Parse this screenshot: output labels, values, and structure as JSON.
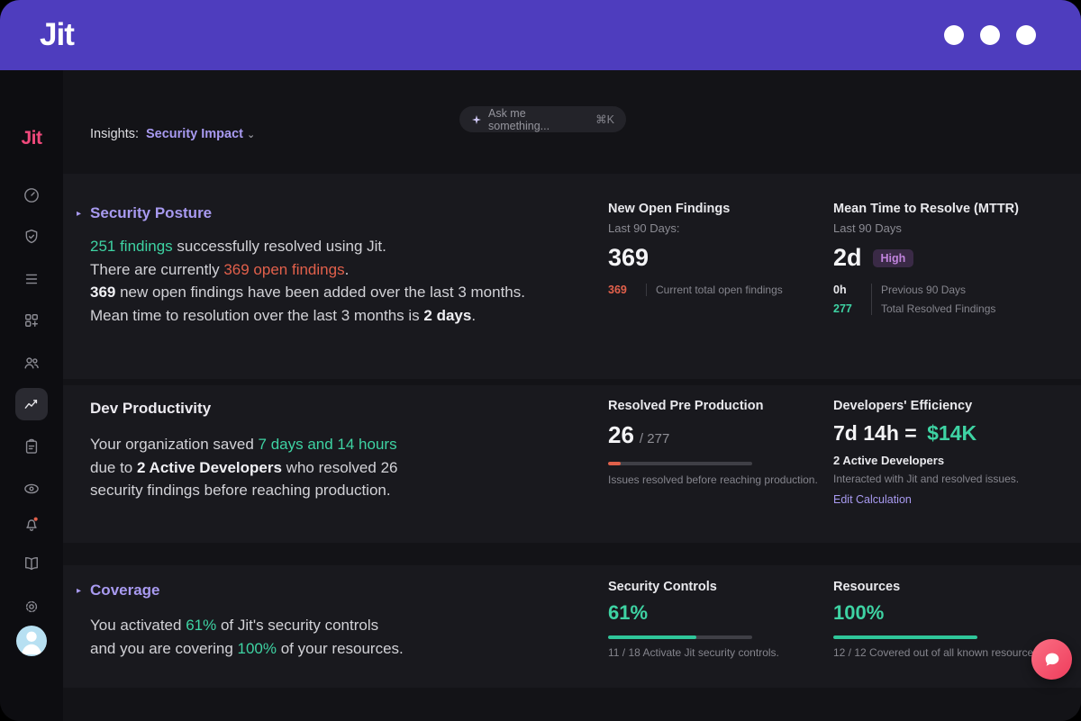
{
  "colors": {
    "header_purple": "#4e3dbe",
    "accent_purple": "#a89af0",
    "teal": "#3ed3a3",
    "coral": "#e2604b",
    "sidebar_logo_pink": "#f0497c"
  },
  "header": {
    "logo": "Jit"
  },
  "sidebar": {
    "logo": "Jit"
  },
  "topbar": {
    "insights_label": "Insights:",
    "insights_value": "Security Impact",
    "search_placeholder": "Ask me something...",
    "search_shortcut": "⌘K"
  },
  "security_posture": {
    "title": "Security Posture",
    "l1a": "251 findings",
    "l1b": " successfully resolved using Jit.",
    "l2a": "There are currently ",
    "l2b": "369 open findings",
    "l2c": ".",
    "l3a": "369",
    "l3b": " new open findings have been added over the last 3 months.",
    "l4a": "Mean time to resolution over the last 3 months is ",
    "l4b": "2 days",
    "l4c": ".",
    "new_open": {
      "title": "New Open Findings",
      "subtitle": "Last 90 Days:",
      "value": "369",
      "stat_value": "369",
      "stat_label": "Current total open findings"
    },
    "mttr": {
      "title": "Mean Time to Resolve (MTTR)",
      "subtitle": "Last 90 Days",
      "value": "2d",
      "badge": "High",
      "stat1_value": "0h",
      "stat1_label": "Previous 90 Days",
      "stat2_value": "277",
      "stat2_label": "Total Resolved Findings"
    }
  },
  "dev_productivity": {
    "title": "Dev Productivity",
    "p1": "Your organization saved ",
    "p2": "7 days and 14 hours",
    "p3": "due to ",
    "p4": "2 Active Developers",
    "p5": " who resolved 26",
    "p6": "security findings before reaching production.",
    "resolved_pre_production": {
      "title": "Resolved Pre Production",
      "value": "26",
      "total": "/ 277",
      "progress_pct": 9,
      "caption": "Issues resolved before reaching production."
    },
    "efficiency": {
      "title": "Developers' Efficiency",
      "value": "7d 14h =",
      "value_highlight": "$14K",
      "line1": "2 Active Developers",
      "line2": "Interacted with Jit and resolved issues.",
      "link": "Edit Calculation"
    }
  },
  "coverage": {
    "title": "Coverage",
    "l1a": "You activated ",
    "l1b": "61%",
    "l1c": " of Jit's security controls",
    "l2a": "and you are covering ",
    "l2b": "100%",
    "l2c": " of your resources.",
    "controls": {
      "title": "Security Controls",
      "value": "61%",
      "progress_pct": 61,
      "caption": "11 / 18 Activate Jit security controls."
    },
    "resources": {
      "title": "Resources",
      "value": "100%",
      "progress_pct": 100,
      "caption": "12 / 12 Covered out of all known resources."
    }
  }
}
